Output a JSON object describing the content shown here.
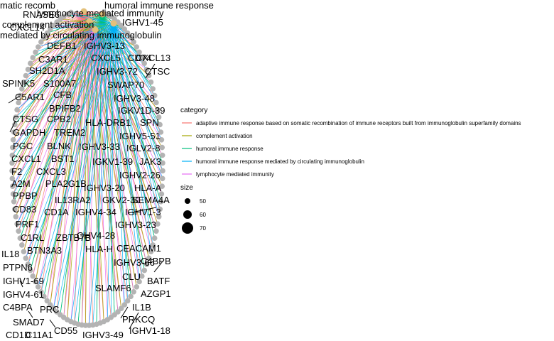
{
  "chart_data": {
    "type": "network",
    "category_nodes": [
      "adaptive immune response based on somatic recombination of immune receptors built from immunoglobulin superfamily domains",
      "complement activation",
      "humoral immune response",
      "humoral immune response mediated by circulating immunoglobulin",
      "lymphocyte mediated immunity"
    ],
    "visible_hub_labels": [
      "matic recomb",
      "humoral immune response",
      "lymphocyte mediated immunity",
      "complement activation",
      "mediated by circulating immunoglobulin"
    ],
    "gene_labels_left": [
      "RNASE6",
      "CXCL14",
      "DEFB1",
      "C3AR1",
      "SH2D1A",
      "SPINK5",
      "S100A7",
      "C5AR1",
      "CFB",
      "BPIFB2",
      "CTSG",
      "CPB2",
      "GAPDH",
      "TREM2",
      "PGC",
      "BLNK",
      "CXCL1",
      "BST1",
      "F2",
      "CXCL3",
      "A2M",
      "PLA2G1B",
      "PPBP",
      "CD83",
      "PRF1",
      "C1RL",
      "ZBTB7B",
      "IL18",
      "BTN3A3",
      "PTPN6",
      "IGHV1-69",
      "IGHV4-61",
      "C4BPA",
      "PRC",
      "SMAD7",
      "CD1D",
      "C11A1",
      "CD55"
    ],
    "gene_labels_right": [
      "IGHV1-45",
      "IGHV3-13",
      "CXCL5",
      "CD74",
      "CXCL13",
      "IGHV3-72",
      "CTSC",
      "SWAP70",
      "IGHV3-48",
      "IGKV1D-39",
      "HLA-DRB1",
      "SPN",
      "IGHV5-51",
      "IGHV3-33",
      "IGLV2-8",
      "IGKV1-39",
      "JAK3",
      "IGHV2-26",
      "IGHV3-20",
      "HLA-A",
      "IL13RA2",
      "GKV2-30",
      "SEMA4A",
      "CD1A",
      "IGHV4-34",
      "IGHV1-3",
      "IGHV3-23",
      "GHV4-28",
      "HLA-H",
      "CEACAM1",
      "C4BPB",
      "IGHV3-66",
      "CLU",
      "BATF",
      "SLAMF6",
      "AZGP1",
      "IL1B",
      "PRKCQ",
      "IGHV1-18",
      "IGHV3-49"
    ],
    "legend_title": "category",
    "legend": [
      {
        "label": "adaptive immune response based on somatic recombination of immune receptors built from immunoglobulin superfamily domains",
        "color": "#F8766D"
      },
      {
        "label": "complement activation",
        "color": "#A3A500"
      },
      {
        "label": "humoral immune response",
        "color": "#00BF7D"
      },
      {
        "label": "humoral immune response mediated by circulating immunoglobulin",
        "color": "#00B0F6"
      },
      {
        "label": "lymphocyte mediated immunity",
        "color": "#E76BF3"
      }
    ],
    "size_title": "size",
    "size_legend": [
      50,
      60,
      70
    ],
    "node_color": "#B3B3B3",
    "grid": false,
    "legend_position": "right"
  }
}
